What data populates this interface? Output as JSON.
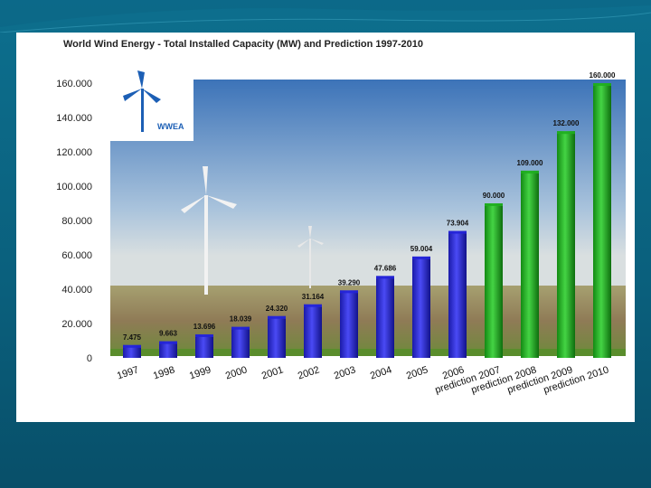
{
  "slide": {
    "background": "#0a5f7c"
  },
  "chart_data": {
    "type": "bar",
    "title": "World Wind Energy - Total Installed Capacity (MW) and Prediction 1997-2010",
    "xlabel": "",
    "ylabel": "",
    "ylim": [
      0,
      160000
    ],
    "y_ticks": [
      "0",
      "20.000",
      "40.000",
      "60.000",
      "80.000",
      "100.000",
      "120.000",
      "140.000",
      "160.000"
    ],
    "categories": [
      "1997",
      "1998",
      "1999",
      "2000",
      "2001",
      "2002",
      "2003",
      "2004",
      "2005",
      "2006",
      "prediction 2007",
      "prediction 2008",
      "prediction 2009",
      "prediction 2010"
    ],
    "values": [
      7475,
      9663,
      13696,
      18039,
      24320,
      31164,
      39290,
      47686,
      59004,
      73904,
      90000,
      109000,
      132000,
      160000
    ],
    "data_labels": [
      "7.475",
      "9.663",
      "13.696",
      "18.039",
      "24.320",
      "31.164",
      "39.290",
      "47.686",
      "59.004",
      "73.904",
      "90.000",
      "109.000",
      "132.000",
      "160.000"
    ],
    "series_colors": {
      "actual": "#2424d8",
      "prediction": "#1fae1f"
    },
    "grid": false,
    "logo_text": "WWEA"
  }
}
